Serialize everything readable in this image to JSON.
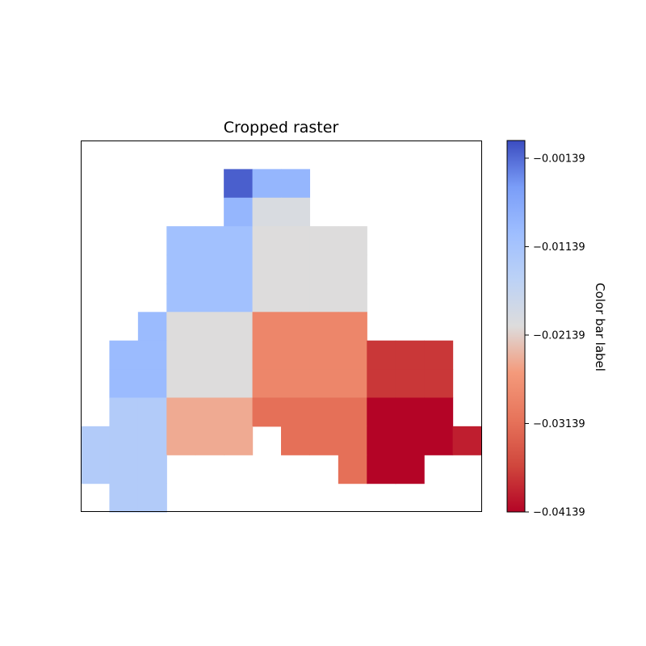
{
  "chart_data": {
    "type": "heatmap",
    "title": "Cropped raster",
    "colormap": "coolwarm",
    "grid_shape": [
      13,
      14
    ],
    "value_range": [
      -0.04139,
      0.00061
    ],
    "raster": [
      [
        null,
        null,
        null,
        null,
        null,
        null,
        null,
        null,
        null,
        null,
        null,
        null,
        null,
        null
      ],
      [
        null,
        null,
        null,
        null,
        null,
        -0.00061,
        -0.00861,
        -0.00861,
        null,
        null,
        null,
        null,
        null,
        null
      ],
      [
        null,
        null,
        null,
        null,
        null,
        -0.00861,
        -0.01961,
        -0.01961,
        null,
        null,
        null,
        null,
        null,
        null
      ],
      [
        null,
        null,
        null,
        -0.01061,
        -0.01061,
        -0.01061,
        -0.02039,
        -0.02039,
        -0.02039,
        -0.02039,
        null,
        null,
        null,
        null
      ],
      [
        null,
        null,
        null,
        -0.01061,
        -0.01061,
        -0.01061,
        -0.02039,
        -0.02039,
        -0.02039,
        -0.02039,
        null,
        null,
        null,
        null
      ],
      [
        null,
        null,
        null,
        -0.01061,
        -0.01061,
        -0.01061,
        -0.02039,
        -0.02039,
        -0.02039,
        -0.02039,
        null,
        null,
        null,
        null
      ],
      [
        null,
        null,
        -0.00939,
        -0.02039,
        -0.02039,
        -0.02039,
        -0.02839,
        -0.02839,
        -0.02839,
        -0.02839,
        null,
        null,
        null,
        null
      ],
      [
        null,
        -0.00939,
        -0.00939,
        -0.02039,
        -0.02039,
        -0.02039,
        -0.02839,
        -0.02839,
        -0.02839,
        -0.02839,
        -0.03739,
        -0.03739,
        -0.03739,
        null
      ],
      [
        null,
        -0.00939,
        -0.00939,
        -0.02039,
        -0.02039,
        -0.02039,
        -0.02839,
        -0.02839,
        -0.02839,
        -0.02839,
        -0.03739,
        -0.03739,
        -0.03739,
        null
      ],
      [
        null,
        -0.01339,
        -0.01339,
        -0.02439,
        -0.02439,
        -0.02439,
        -0.03139,
        -0.03139,
        -0.03139,
        -0.03139,
        -0.04139,
        -0.04139,
        -0.04139,
        null
      ],
      [
        -0.01339,
        -0.01339,
        -0.01339,
        -0.02439,
        -0.02439,
        -0.02439,
        null,
        -0.03139,
        -0.03139,
        -0.03139,
        -0.04139,
        -0.04139,
        -0.04139,
        -0.03939
      ],
      [
        -0.01339,
        -0.01339,
        -0.01339,
        null,
        null,
        null,
        null,
        null,
        null,
        -0.03139,
        -0.04139,
        -0.04139,
        null,
        null
      ],
      [
        null,
        -0.01339,
        -0.01339,
        null,
        null,
        null,
        null,
        null,
        null,
        null,
        null,
        null,
        null,
        null
      ]
    ],
    "colorbar": {
      "label": "Color bar label",
      "ticks": [
        -0.00139,
        -0.01139,
        -0.02139,
        -0.03139,
        -0.04139
      ],
      "tick_labels": [
        "−0.00139",
        "−0.01139",
        "−0.02139",
        "−0.03139",
        "−0.04139"
      ]
    },
    "xlabel": "",
    "ylabel": "",
    "grid": false
  }
}
